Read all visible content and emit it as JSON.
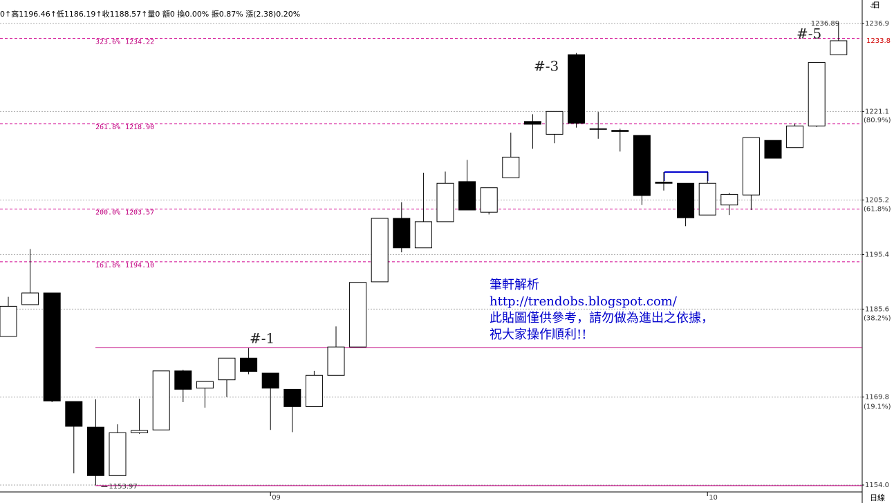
{
  "header": "0↑高1196.46↑低1186.19↑收1188.57↑量0 額0 換0.00% 振0.87% 漲(2.38)0.20%",
  "corner": "日",
  "period": "日線",
  "chart_data": {
    "type": "candlestick",
    "categories": [
      null,
      null,
      null,
      null,
      null,
      null,
      null,
      null,
      null,
      null,
      null,
      null,
      "09",
      null,
      null,
      null,
      null,
      null,
      null,
      null,
      null,
      null,
      null,
      null,
      null,
      null,
      null,
      null,
      null,
      null,
      null,
      null,
      "10",
      null,
      null,
      null,
      null,
      null,
      null
    ],
    "open": [
      1180.7,
      1186.4,
      1188.5,
      1169.0,
      1164.4,
      1155.7,
      1163.4,
      1163.9,
      1174.5,
      1171.4,
      1172.9,
      1176.8,
      1174.1,
      1171.2,
      1168.1,
      1173.7,
      1178.8,
      1190.5,
      1201.9,
      1196.6,
      1201.3,
      1208.5,
      1203.0,
      1209.2,
      1219.3,
      1217.0,
      1231.3,
      1217.9,
      1217.7,
      1216.8,
      1208.4,
      1208.2,
      1202.5,
      1204.3,
      1206.1,
      1215.9,
      1214.6,
      1218.5,
      1231.3
    ],
    "high": [
      1187.8,
      1196.4,
      1188.5,
      1169.0,
      1169.4,
      1164.9,
      1169.5,
      1174.5,
      1174.7,
      1172.6,
      1176.8,
      1178.6,
      1174.1,
      1171.2,
      1174.5,
      1182.5,
      1190.4,
      1201.9,
      1204.8,
      1210.1,
      1210.3,
      1212.4,
      1207.4,
      1217.3,
      1220.6,
      1221.1,
      1231.6,
      1221.0,
      1218.0,
      1216.8,
      1210.2,
      1208.2,
      1210.2,
      1206.5,
      1216.4,
      1215.9,
      1218.9,
      1229.9,
      1236.89
    ],
    "low": [
      1180.7,
      1186.4,
      1168.9,
      1156.1,
      1153.97,
      1155.7,
      1163.2,
      1163.9,
      1168.9,
      1167.9,
      1169.8,
      1173.9,
      1163.9,
      1163.5,
      1168.1,
      1173.7,
      1178.8,
      1190.5,
      1195.8,
      1196.6,
      1201.3,
      1203.4,
      1202.6,
      1209.2,
      1214.4,
      1215.4,
      1218.2,
      1216.2,
      1213.9,
      1204.3,
      1206.9,
      1200.5,
      1202.5,
      1202.5,
      1203.4,
      1212.7,
      1214.6,
      1218.3,
      1231.3
    ],
    "close": [
      1186.1,
      1188.5,
      1169.1,
      1164.55,
      1155.7,
      1163.4,
      1163.8,
      1174.5,
      1171.2,
      1172.6,
      1176.8,
      1174.4,
      1171.4,
      1168.1,
      1173.7,
      1178.8,
      1190.4,
      1201.9,
      1196.6,
      1201.3,
      1208.2,
      1203.4,
      1207.4,
      1212.9,
      1218.8,
      1221.1,
      1219.0,
      1218.0,
      1217.5,
      1206.0,
      1208.2,
      1202.0,
      1208.2,
      1206.2,
      1216.4,
      1212.7,
      1218.5,
      1229.9,
      1233.8
    ],
    "up_color": "#ffffff",
    "down_color": "#000000",
    "ylim": [
      1152.76,
      1241.12
    ],
    "yticks": [
      {
        "value": 1154.0,
        "label": "1154.0"
      },
      1169.8,
      1185.6,
      1195.4,
      1205.2,
      1221.1,
      1236.9
    ],
    "grid": true,
    "last_price": 1233.8,
    "high_label": 1236.89,
    "low_label": 1153.97,
    "fib_levels": [
      {
        "ratio": "323.6%",
        "value": 1234.22,
        "value_label": "1234.22"
      },
      {
        "ratio": "261.8%",
        "value": 1218.9,
        "value_label": "1218.90"
      },
      {
        "ratio": "200.0%",
        "value": 1203.57,
        "value_label": "1203.57"
      },
      {
        "ratio": "161.8%",
        "value": 1194.1,
        "value_label": "1194.10"
      }
    ],
    "hlines": [
      1178.7,
      1153.9
    ],
    "right_labels": [
      {
        "label": "(80.9%)",
        "value": 1219.5
      },
      {
        "label": "(61.8%)",
        "value": 1203.6
      },
      {
        "label": "(38.2%)",
        "value": 1184.0
      },
      {
        "label": "(19.1%)",
        "value": 1168.1
      }
    ],
    "annotations": [
      "#-1",
      "#-3",
      "#-5"
    ],
    "note": [
      "筆軒解析",
      "http://trendobs.blogspot.com/",
      "此貼圖僅供參考，請勿做為進出之依據，",
      "祝大家操作順利!!"
    ]
  }
}
